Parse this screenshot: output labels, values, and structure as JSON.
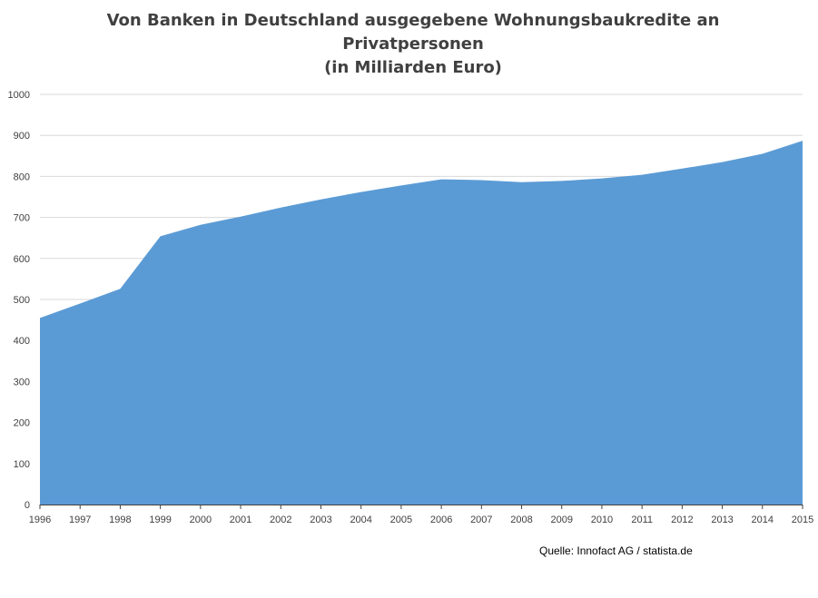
{
  "chart_data": {
    "type": "area",
    "title_lines": [
      "Von Banken in Deutschland  ausgegebene Wohnungsbaukredite  an",
      "Privatpersonen",
      "(in Milliarden  Euro)"
    ],
    "x": [
      "1996",
      "1997",
      "1998",
      "1999",
      "2000",
      "2001",
      "2002",
      "2003",
      "2004",
      "2005",
      "2006",
      "2007",
      "2008",
      "2009",
      "2010",
      "2011",
      "2012",
      "2013",
      "2014",
      "2015"
    ],
    "values": [
      455,
      490,
      526,
      654,
      682,
      702,
      724,
      744,
      762,
      778,
      793,
      791,
      786,
      789,
      795,
      804,
      819,
      835,
      855,
      887
    ],
    "ylim": [
      0,
      1000
    ],
    "yticks": [
      0,
      100,
      200,
      300,
      400,
      500,
      600,
      700,
      800,
      900,
      1000
    ],
    "grid": true,
    "colors": {
      "area": "#5b9bd5",
      "grid": "#d9d9d9",
      "axis": "#404040"
    }
  },
  "source": "Quelle: Innofact AG / statista.de"
}
